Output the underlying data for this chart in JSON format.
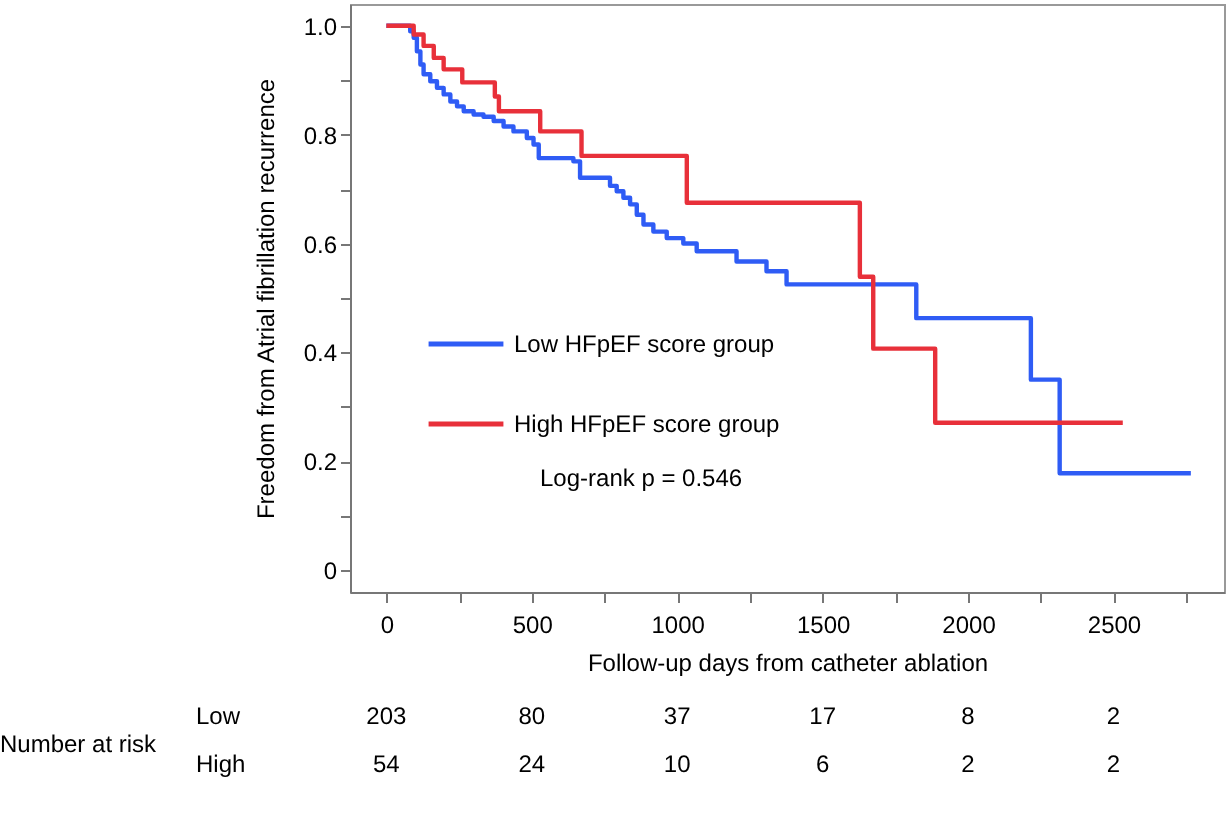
{
  "chart_data": {
    "type": "step",
    "xlabel": "Follow-up days from catheter ablation",
    "ylabel": "Freedom from Atrial fibrillation recurrence",
    "xlim": [
      -125,
      2880
    ],
    "ylim": [
      -0.04,
      1.04
    ],
    "xticks": [
      0,
      {
        "value": 250,
        "label": null
      },
      500,
      {
        "value": 750,
        "label": null
      },
      1000,
      {
        "value": 1250,
        "label": null
      },
      1500,
      {
        "value": 1750,
        "label": null
      },
      2000,
      {
        "value": 2250,
        "label": null
      },
      2500,
      {
        "value": 2750,
        "label": null
      }
    ],
    "yticks": [
      0,
      {
        "value": 0.1,
        "label": null
      },
      0.2,
      {
        "value": 0.3,
        "label": null
      },
      0.4,
      {
        "value": 0.5,
        "label": null
      },
      0.6,
      {
        "value": 0.7,
        "label": null
      },
      0.8,
      {
        "value": 0.9,
        "label": null
      },
      {
        "value": 1,
        "label": "1.0"
      }
    ],
    "legend": "left",
    "grid": false,
    "series": [
      {
        "name": "Low HFpEF score group",
        "color": "#2f5cf5",
        "x": [
          0,
          82,
          94,
          105,
          117,
          128,
          151,
          174,
          197,
          220,
          243,
          266,
          300,
          334,
          369,
          403,
          437,
          483,
          506,
          524,
          643,
          666,
          769,
          792,
          815,
          838,
          861,
          884,
          918,
          964,
          1021,
          1067,
          1204,
          1307,
          1376,
          1822,
          2216,
          2315,
          2766
        ],
        "values": [
          1.0,
          0.99,
          0.978,
          0.953,
          0.929,
          0.911,
          0.898,
          0.886,
          0.874,
          0.861,
          0.852,
          0.843,
          0.837,
          0.833,
          0.825,
          0.815,
          0.806,
          0.794,
          0.782,
          0.757,
          0.751,
          0.721,
          0.706,
          0.696,
          0.684,
          0.672,
          0.653,
          0.635,
          0.622,
          0.61,
          0.6,
          0.586,
          0.567,
          0.549,
          0.525,
          0.463,
          0.35,
          0.178,
          0.178
        ]
      },
      {
        "name": "High HFpEF score group",
        "color": "#e8303a",
        "x": [
          0,
          94,
          128,
          163,
          197,
          261,
          373,
          387,
          529,
          671,
          1033,
          1628,
          1674,
          1887,
          2532
        ],
        "values": [
          1.0,
          0.984,
          0.963,
          0.941,
          0.92,
          0.896,
          0.87,
          0.843,
          0.806,
          0.761,
          0.675,
          0.539,
          0.407,
          0.271,
          0.271
        ]
      }
    ],
    "annotations": [
      "Log-rank p = 0.546",
      "Number at risk",
      "Low",
      "203",
      "80",
      "37",
      "17",
      "8",
      "2",
      "High",
      "54",
      "24",
      "10",
      "6",
      "2",
      "2"
    ]
  }
}
